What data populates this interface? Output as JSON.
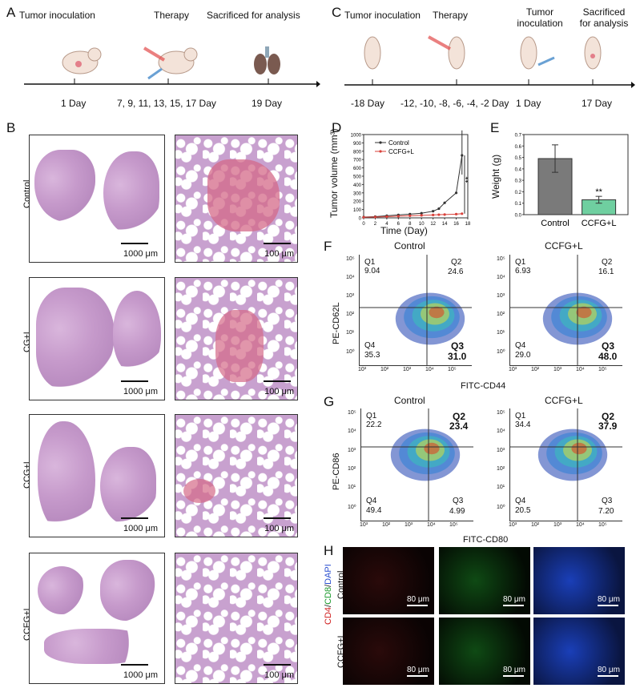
{
  "panels": {
    "A": {
      "label": "A",
      "events": [
        "Tumor inoculation",
        "Therapy",
        "Sacrificed for analysis"
      ],
      "days": [
        "1 Day",
        "7, 9, 11, 13, 15, 17 Day",
        "19 Day"
      ]
    },
    "B": {
      "label": "B",
      "rows": [
        "Control",
        "CG+L",
        "CCG+L",
        "CCFG+L"
      ],
      "scale_low": "1000 μm",
      "scale_high": "100 μm"
    },
    "C": {
      "label": "C",
      "events": [
        "Tumor inoculation",
        "Therapy",
        "Tumor\ninoculation",
        "Sacrificed\nfor analysis"
      ],
      "days": [
        "-18 Day",
        "-12, -10, -8, -6, -4, -2 Day",
        "1 Day",
        "17 Day"
      ]
    },
    "D": {
      "label": "D",
      "ylabel": "Tumor volume (mm³)",
      "xlabel": "Time (Day)",
      "significance": "**"
    },
    "E": {
      "label": "E",
      "ylabel": "Weight (g)",
      "significance": "**"
    },
    "F": {
      "label": "F",
      "ylabel": "PE-CD62L",
      "xlabel": "FITC-CD44",
      "plots": [
        {
          "title": "Control",
          "q1": "Q1",
          "q1v": "9.04",
          "q2": "Q2",
          "q2v": "24.6",
          "q3": "Q3",
          "q3v": "31.0",
          "q4": "Q4",
          "q4v": "35.3"
        },
        {
          "title": "CCFG+L",
          "q1": "Q1",
          "q1v": "6.93",
          "q2": "Q2",
          "q2v": "16.1",
          "q3": "Q3",
          "q3v": "48.0",
          "q4": "Q4",
          "q4v": "29.0"
        }
      ]
    },
    "G": {
      "label": "G",
      "ylabel": "PE-CD86",
      "xlabel": "FITC-CD80",
      "plots": [
        {
          "title": "Control",
          "q1": "Q1",
          "q1v": "22.2",
          "q2": "Q2",
          "q2v": "23.4",
          "q3": "Q3",
          "q3v": "4.99",
          "q4": "Q4",
          "q4v": "49.4"
        },
        {
          "title": "CCFG+L",
          "q1": "Q1",
          "q1v": "34.4",
          "q2": "Q2",
          "q2v": "37.9",
          "q3": "Q3",
          "q3v": "7.20",
          "q4": "Q4",
          "q4v": "20.5"
        }
      ]
    },
    "H": {
      "label": "H",
      "stain_cd4": "CD4",
      "stain_cd8": "CD8",
      "stain_dapi": "DAPI",
      "sep": "/",
      "rows": [
        "Control",
        "CCFG+L"
      ],
      "scale": "80 μm"
    }
  },
  "flow_ticks": {
    "x": [
      "10³",
      "10²",
      "10³",
      "10⁴",
      "10⁵"
    ],
    "y": [
      "10⁵",
      "10⁴",
      "10³",
      "10²",
      "10¹",
      "10⁰"
    ]
  },
  "chart_data": [
    {
      "type": "line",
      "title": "",
      "xlabel": "Time (Day)",
      "ylabel": "Tumor volume (mm³)",
      "x": [
        0,
        2,
        4,
        6,
        8,
        10,
        12,
        13,
        14,
        16,
        17
      ],
      "xlim": [
        0,
        18
      ],
      "ylim": [
        0,
        1000
      ],
      "xticks": [
        "0",
        "2",
        "4",
        "6",
        "8",
        "10",
        "12",
        "14",
        "16",
        "18"
      ],
      "yticks": [
        "0",
        "100",
        "200",
        "300",
        "400",
        "500",
        "600",
        "700",
        "800",
        "900",
        "1000"
      ],
      "series": [
        {
          "name": "Control",
          "color": "#333333",
          "values": [
            10,
            15,
            25,
            35,
            45,
            55,
            80,
            110,
            180,
            300,
            750
          ]
        },
        {
          "name": "CCFG+L",
          "color": "#d9413a",
          "values": [
            8,
            10,
            15,
            20,
            25,
            30,
            35,
            38,
            40,
            45,
            50
          ]
        }
      ],
      "legend": "top-left"
    },
    {
      "type": "bar",
      "title": "",
      "ylabel": "Weight (g)",
      "categories": [
        "Control",
        "CCFG+L"
      ],
      "values": [
        0.49,
        0.13
      ],
      "errors": [
        0.12,
        0.03
      ],
      "colors": [
        "#7a7a7a",
        "#6fcfa0"
      ],
      "ylim": [
        0,
        0.7
      ],
      "yticks": [
        "0.0",
        "0.1",
        "0.2",
        "0.3",
        "0.4",
        "0.5",
        "0.6",
        "0.7"
      ]
    }
  ]
}
